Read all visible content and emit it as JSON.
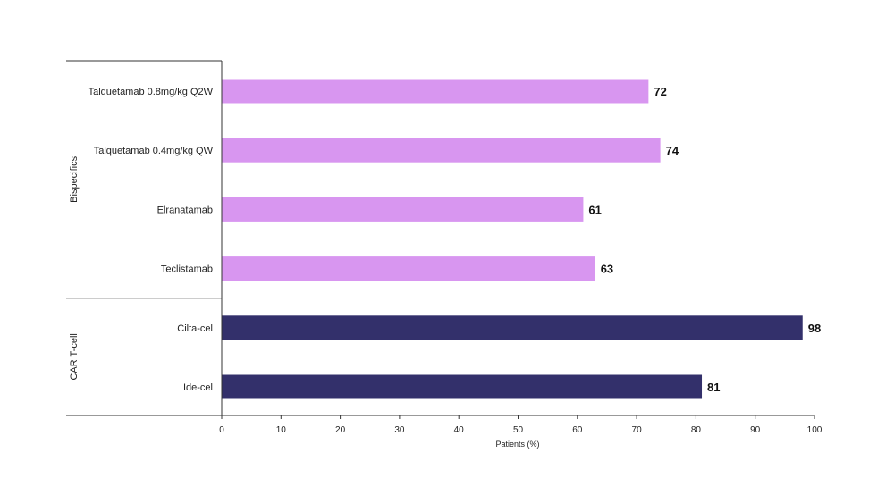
{
  "chart_data": {
    "type": "bar",
    "orientation": "horizontal",
    "xlabel": "Patients (%)",
    "xlim": [
      0,
      100
    ],
    "xticks": [
      "0",
      "10",
      "20",
      "30",
      "40",
      "50",
      "60",
      "70",
      "80",
      "90",
      "100"
    ],
    "grid": false,
    "legend": "none",
    "groups": [
      {
        "name": "Bispecifics",
        "color": "#d896f0",
        "categories": [
          "Talquetamab 0.8mg/kg Q2W",
          "Talquetamab 0.4mg/kg QW",
          "Elranatamab",
          "Teclistamab"
        ],
        "values": [
          72,
          74,
          61,
          63
        ]
      },
      {
        "name": "CAR T-cell",
        "color": "#33306b",
        "categories": [
          "Cilta-cel",
          "Ide-cel"
        ],
        "values": [
          98,
          81
        ]
      }
    ]
  }
}
